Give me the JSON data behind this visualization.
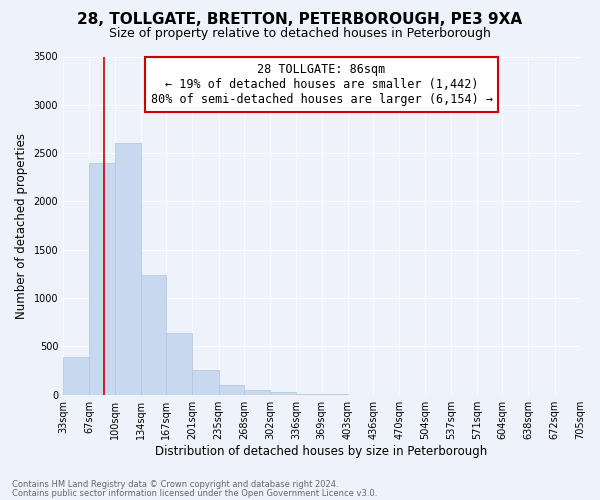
{
  "title": "28, TOLLGATE, BRETTON, PETERBOROUGH, PE3 9XA",
  "subtitle": "Size of property relative to detached houses in Peterborough",
  "xlabel": "Distribution of detached houses by size in Peterborough",
  "ylabel": "Number of detached properties",
  "footnote1": "Contains HM Land Registry data © Crown copyright and database right 2024.",
  "footnote2": "Contains public sector information licensed under the Open Government Licence v3.0.",
  "bar_edges": [
    33,
    67,
    100,
    134,
    167,
    201,
    235,
    268,
    302,
    336,
    369,
    403,
    436,
    470,
    504,
    537,
    571,
    604,
    638,
    672,
    705
  ],
  "bar_heights": [
    390,
    2400,
    2600,
    1240,
    640,
    255,
    100,
    50,
    30,
    10,
    5,
    0,
    0,
    0,
    0,
    0,
    0,
    0,
    0,
    0
  ],
  "tick_labels": [
    "33sqm",
    "67sqm",
    "100sqm",
    "134sqm",
    "167sqm",
    "201sqm",
    "235sqm",
    "268sqm",
    "302sqm",
    "336sqm",
    "369sqm",
    "403sqm",
    "436sqm",
    "470sqm",
    "504sqm",
    "537sqm",
    "571sqm",
    "604sqm",
    "638sqm",
    "672sqm",
    "705sqm"
  ],
  "bar_color": "#c8d8ef",
  "bar_edge_color": "#b0c4de",
  "vline_x": 86,
  "vline_color": "#cc0000",
  "annotation_line1": "28 TOLLGATE: 86sqm",
  "annotation_line2": "← 19% of detached houses are smaller (1,442)",
  "annotation_line3": "80% of semi-detached houses are larger (6,154) →",
  "annotation_box_color": "#ffffff",
  "annotation_box_edge": "#cc0000",
  "ylim": [
    0,
    3500
  ],
  "yticks": [
    0,
    500,
    1000,
    1500,
    2000,
    2500,
    3000,
    3500
  ],
  "bg_color": "#eef3fb",
  "plot_bg": "#eef3fb",
  "grid_color": "#ffffff",
  "title_fontsize": 11,
  "subtitle_fontsize": 9,
  "axis_label_fontsize": 8.5,
  "tick_fontsize": 7,
  "annotation_fontsize": 8.5,
  "footnote_fontsize": 6,
  "footnote_color": "#666666"
}
